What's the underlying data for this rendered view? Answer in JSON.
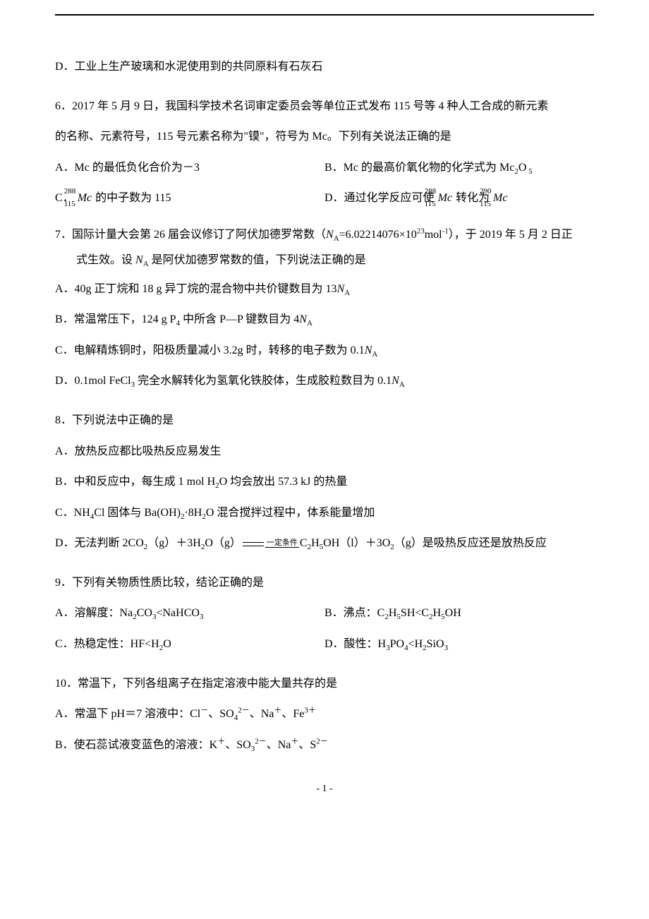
{
  "q5d": "D．工业上生产玻璃和水泥使用到的共同原料有石灰石",
  "q6": {
    "intro1": "6．2017 年 5 月 9 日，我国科学技术名词审定委员会等单位正式发布 115 号等 4 种人工合成的新元素",
    "intro2": "的名称、元素符号，115 号元素名称为\"镆\"，符号为 Mc。下列有关说法正确的是",
    "a": "A．Mc 的最低负化合价为－3",
    "b_pre": "B．Mc 的最高价氧化物的化学式为 Mc",
    "b_sub1": "2",
    "b_post": "O",
    "b_sub2": "5",
    "c_pre": "C．",
    "c_mass": "288",
    "c_atno": "115",
    "c_sym": "Mc",
    "c_post": " 的中子数为 115",
    "d_pre": "D．通过化学反应可使 ",
    "d_mass1": "288",
    "d_atno1": "115",
    "d_sym1": "Mc",
    "d_mid": " 转化为 ",
    "d_mass2": "290",
    "d_atno2": "115",
    "d_sym2": "Mc"
  },
  "q7": {
    "intro1_pre": "7．国际计量大会第 26 届会议修订了阿伏加德罗常数（",
    "intro1_na": "N",
    "intro1_nasub": "A",
    "intro1_eq": "=6.02214076×10",
    "intro1_sup": "23",
    "intro1_mol": "mol",
    "intro1_neg1": "-1",
    "intro1_post": "），于 2019 年 5 月 2 日正",
    "intro2_pre": "式生效。设 ",
    "intro2_na": "N",
    "intro2_nasub": "A",
    "intro2_post": " 是阿伏加德罗常数的值，下列说法正确的是",
    "a_pre": "A．40g 正丁烷和 18 g 异丁烷的混合物中共价键数目为 13",
    "a_na": "N",
    "a_nasub": "A",
    "b_pre": "B．常温常压下，124 g P",
    "b_sub": "4",
    "b_mid": " 中所含 P—P 键数目为 4",
    "b_na": "N",
    "b_nasub": "A",
    "c_pre": "C．电解精炼铜时，阳极质量减小 3.2g 时，转移的电子数为 0.1",
    "c_na": "N",
    "c_nasub": "A",
    "d_pre": "D．0.1mol FeCl",
    "d_sub": "3",
    "d_mid": " 完全水解转化为氢氧化铁胶体，生成胶粒数目为 0.1",
    "d_na": "N",
    "d_nasub": "A"
  },
  "q8": {
    "intro": "8．下列说法中正确的是",
    "a": "A．放热反应都比吸热反应易发生",
    "b_pre": "B．中和反应中，每生成 1 mol H",
    "b_sub": "2",
    "b_post": "O 均会放出 57.3 kJ 的热量",
    "c_pre": "C．NH",
    "c_sub1": "4",
    "c_mid1": "Cl 固体与 Ba(OH)",
    "c_sub2": "2",
    "c_mid2": "·8H",
    "c_sub3": "2",
    "c_post": "O 混合搅拌过程中，体系能量增加",
    "d_pre": "D．无法判断 2CO",
    "d_sub1": "2",
    "d_mid1": "（g）＋3H",
    "d_sub2": "2",
    "d_mid2": "O（g）",
    "d_cond": "一定条件",
    "d_mid3": "C",
    "d_sub3": "2",
    "d_mid4": "H",
    "d_sub4": "5",
    "d_mid5": "OH（l）＋3O",
    "d_sub5": "2",
    "d_post": "（g）是吸热反应还是放热反应"
  },
  "q9": {
    "intro": "9．下列有关物质性质比较，结论正确的是",
    "a_pre": "A．溶解度：Na",
    "a_s1": "2",
    "a_m1": "CO",
    "a_s2": "3",
    "a_m2": "<NaHCO",
    "a_s3": "3",
    "b_pre": "B．沸点：C",
    "b_s1": "2",
    "b_m1": "H",
    "b_s2": "5",
    "b_m2": "SH<C",
    "b_s3": "2",
    "b_m3": "H",
    "b_s4": "5",
    "b_m4": "OH",
    "c_pre": "C．热稳定性：HF<H",
    "c_s1": "2",
    "c_post": "O",
    "d_pre": "D．酸性：H",
    "d_s1": "3",
    "d_m1": "PO",
    "d_s2": "4",
    "d_m2": "<H",
    "d_s3": "2",
    "d_m3": "SiO",
    "d_s4": "3"
  },
  "q10": {
    "intro": "10．常温下，下列各组离子在指定溶液中能大量共存的是",
    "a_pre": "A．常温下 pH＝7 溶液中：Cl",
    "a_sup1": "－",
    "a_m1": "、SO",
    "a_sub1": "4",
    "a_sup2": "2－",
    "a_m2": "、Na",
    "a_sup3": "＋",
    "a_m3": "、Fe",
    "a_sup4": "3＋",
    "b_pre": "B．使石蕊试液变蓝色的溶液：K",
    "b_sup1": "＋",
    "b_m1": "、SO",
    "b_sub1": "3",
    "b_sup2": "2－",
    "b_m2": "、Na",
    "b_sup3": "＋",
    "b_m3": "、S",
    "b_sup4": "2－"
  },
  "footer": "- 1 -"
}
